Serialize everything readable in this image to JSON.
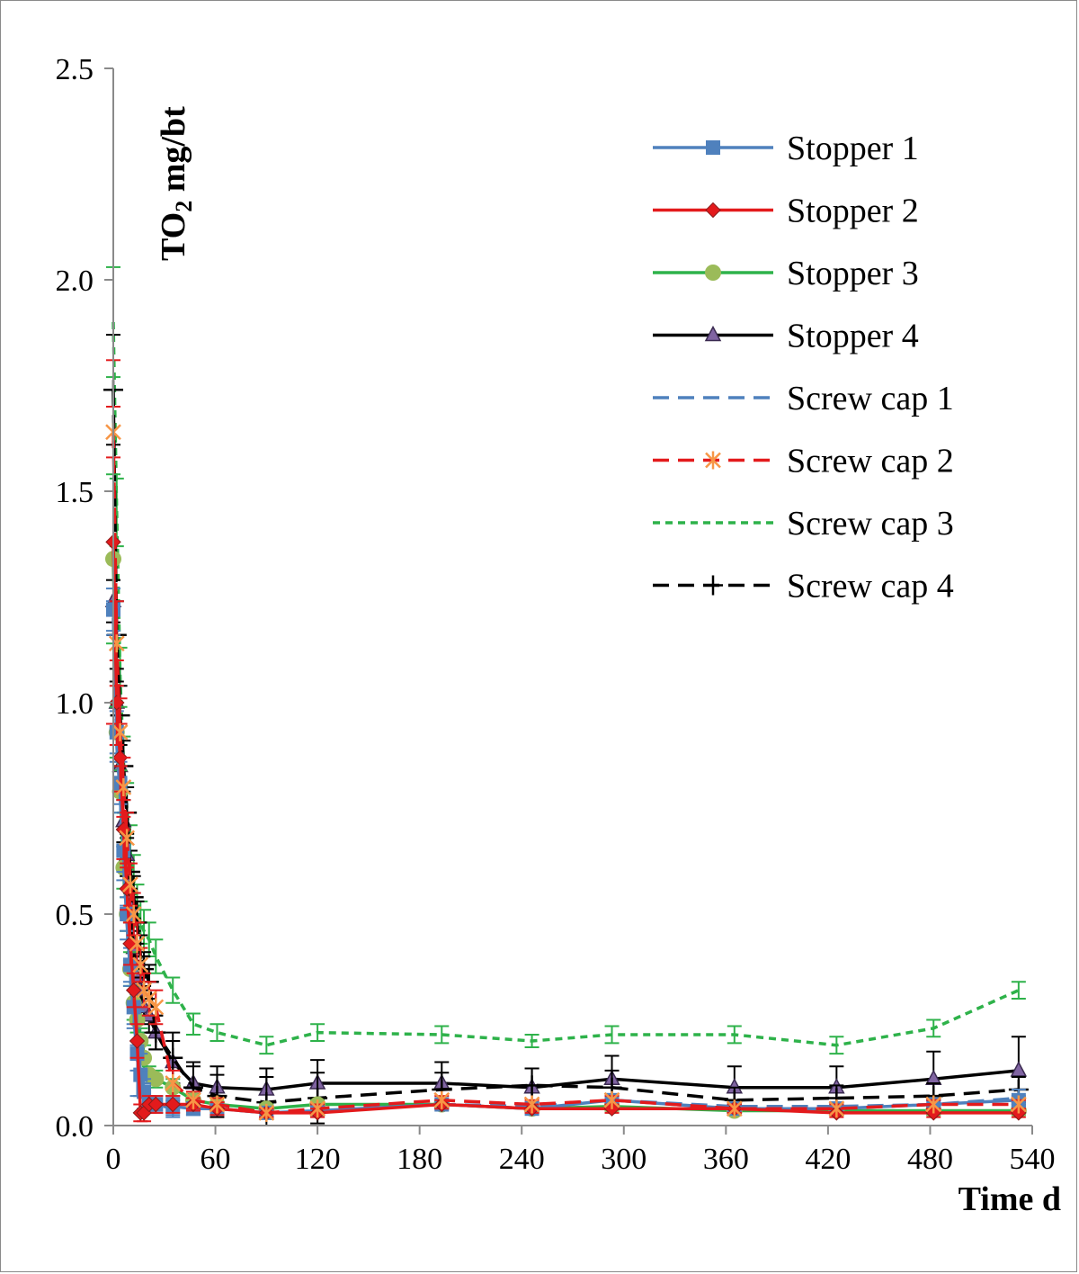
{
  "chart_data": {
    "type": "line",
    "title": "",
    "xlabel": "Time d",
    "ylabel_main": "TO",
    "ylabel_sub": "2",
    "ylabel_rest": " mg/bt",
    "xlim": [
      0,
      540
    ],
    "ylim": [
      0,
      2.5
    ],
    "xticks": [
      0,
      60,
      120,
      180,
      240,
      300,
      360,
      420,
      480,
      540
    ],
    "xtick_labels": [
      "0",
      "60",
      "120",
      "180",
      "240",
      "300",
      "360",
      "420",
      "480",
      "540"
    ],
    "yticks": [
      0,
      0.5,
      1.0,
      1.5,
      2.0,
      2.5
    ],
    "ytick_labels": [
      "0.0",
      "0.5",
      "1.0",
      "1.5",
      "2.0",
      "2.5"
    ],
    "grid": false,
    "legend_position": "top-right",
    "series": [
      {
        "name": "Stopper 1",
        "color": "#4f81bd",
        "dash": "solid",
        "marker": "square",
        "x": [
          0,
          2,
          4,
          6,
          8,
          10,
          12,
          14,
          16,
          18,
          21,
          25,
          35,
          47,
          61,
          90,
          120,
          193,
          246,
          293,
          365,
          425,
          482,
          532
        ],
        "y": [
          1.22,
          0.93,
          0.81,
          0.65,
          0.5,
          0.38,
          0.28,
          0.17,
          0.12,
          0.08,
          0.05,
          0.05,
          0.045,
          0.04,
          0.04,
          0.03,
          0.035,
          0.05,
          0.04,
          0.06,
          0.04,
          0.04,
          0.05,
          0.06
        ],
        "err": [
          0.05,
          0.05,
          0.05,
          0.05,
          0.04,
          0.04,
          0.04,
          0.1,
          0.05,
          0.03,
          0.02,
          0.02,
          0.02,
          0.015,
          0.015,
          0.01,
          0.01,
          0.01,
          0.01,
          0.01,
          0.01,
          0.01,
          0.01,
          0.01
        ]
      },
      {
        "name": "Stopper 2",
        "color": "#e31a1c",
        "dash": "solid",
        "marker": "diamond",
        "x": [
          0,
          2,
          4,
          6,
          8,
          10,
          12,
          14,
          16,
          18,
          21,
          25,
          35,
          47,
          61,
          90,
          120,
          193,
          246,
          293,
          365,
          425,
          482,
          532
        ],
        "y": [
          1.38,
          1.0,
          0.87,
          0.7,
          0.56,
          0.43,
          0.32,
          0.2,
          0.03,
          0.03,
          0.05,
          0.05,
          0.05,
          0.05,
          0.04,
          0.03,
          0.03,
          0.05,
          0.04,
          0.04,
          0.04,
          0.03,
          0.03,
          0.03
        ],
        "err": [
          0.43,
          0.1,
          0.08,
          0.07,
          0.05,
          0.05,
          0.04,
          0.04,
          0.02,
          0.02,
          0.02,
          0.02,
          0.02,
          0.015,
          0.015,
          0.01,
          0.01,
          0.01,
          0.01,
          0.01,
          0.01,
          0.01,
          0.01,
          0.01
        ]
      },
      {
        "name": "Stopper 3",
        "color": "#2eb24a",
        "marker_color": "#9bbb59",
        "dash": "solid",
        "marker": "circle",
        "x": [
          0,
          2,
          4,
          6,
          8,
          10,
          12,
          14,
          16,
          18,
          21,
          25,
          35,
          47,
          61,
          90,
          120,
          193,
          246,
          293,
          365,
          425,
          482,
          532
        ],
        "y": [
          1.34,
          0.93,
          0.79,
          0.61,
          0.5,
          0.37,
          0.29,
          0.25,
          0.2,
          0.16,
          0.12,
          0.11,
          0.09,
          0.06,
          0.05,
          0.04,
          0.05,
          0.05,
          0.04,
          0.045,
          0.035,
          0.035,
          0.035,
          0.035
        ],
        "err": [
          0.2,
          0.06,
          0.05,
          0.05,
          0.04,
          0.04,
          0.04,
          0.03,
          0.03,
          0.03,
          0.02,
          0.02,
          0.02,
          0.015,
          0.015,
          0.01,
          0.01,
          0.01,
          0.01,
          0.01,
          0.01,
          0.01,
          0.01,
          0.01
        ]
      },
      {
        "name": "Stopper 4",
        "color": "#000000",
        "marker_color": "#8064a2",
        "dash": "solid",
        "marker": "triangle",
        "x": [
          0,
          2,
          4,
          6,
          8,
          10,
          12,
          14,
          16,
          18,
          21,
          25,
          35,
          47,
          61,
          90,
          120,
          193,
          246,
          293,
          365,
          425,
          482,
          532
        ],
        "y": [
          1.24,
          1.0,
          0.85,
          0.72,
          0.64,
          0.52,
          0.42,
          0.35,
          0.32,
          0.28,
          0.26,
          0.22,
          0.15,
          0.1,
          0.09,
          0.085,
          0.1,
          0.1,
          0.09,
          0.11,
          0.09,
          0.09,
          0.11,
          0.13
        ],
        "err": [
          0.05,
          0.05,
          0.05,
          0.05,
          0.05,
          0.04,
          0.04,
          0.04,
          0.04,
          0.04,
          0.04,
          0.04,
          0.05,
          0.05,
          0.05,
          0.05,
          0.055,
          0.05,
          0.045,
          0.055,
          0.05,
          0.05,
          0.065,
          0.08
        ]
      },
      {
        "name": "Screw cap 1",
        "color": "#4f81bd",
        "dash": "dashed",
        "marker": "none",
        "x": [
          0,
          2,
          4,
          6,
          8,
          10,
          12,
          14,
          16,
          18,
          21,
          25,
          35,
          47,
          61,
          90,
          120,
          193,
          246,
          293,
          365,
          425,
          482,
          532
        ],
        "y": [
          1.2,
          0.9,
          0.78,
          0.62,
          0.48,
          0.36,
          0.26,
          0.16,
          0.1,
          0.07,
          0.05,
          0.05,
          0.04,
          0.04,
          0.04,
          0.03,
          0.035,
          0.05,
          0.045,
          0.06,
          0.045,
          0.045,
          0.05,
          0.065
        ],
        "err": [
          0.04,
          0.04,
          0.04,
          0.04,
          0.04,
          0.03,
          0.03,
          0.03,
          0.03,
          0.03,
          0.02,
          0.02,
          0.02,
          0.015,
          0.015,
          0.01,
          0.01,
          0.01,
          0.01,
          0.01,
          0.01,
          0.01,
          0.01,
          0.02
        ]
      },
      {
        "name": "Screw cap 2",
        "color": "#e31a1c",
        "marker_color": "#f79646",
        "dash": "dashed",
        "marker": "asterisk",
        "x": [
          0,
          2,
          4,
          6,
          8,
          10,
          12,
          14,
          16,
          18,
          21,
          25,
          35,
          47,
          61,
          90,
          120,
          193,
          246,
          293,
          365,
          425,
          482,
          532
        ],
        "y": [
          1.64,
          1.14,
          0.93,
          0.8,
          0.68,
          0.57,
          0.5,
          0.43,
          0.38,
          0.32,
          0.3,
          0.28,
          0.1,
          0.06,
          0.05,
          0.03,
          0.04,
          0.06,
          0.05,
          0.06,
          0.04,
          0.04,
          0.05,
          0.05
        ],
        "err": [
          0.06,
          0.1,
          0.08,
          0.07,
          0.06,
          0.05,
          0.05,
          0.05,
          0.04,
          0.04,
          0.04,
          0.04,
          0.03,
          0.02,
          0.015,
          0.01,
          0.01,
          0.01,
          0.01,
          0.01,
          0.01,
          0.01,
          0.01,
          0.01
        ]
      },
      {
        "name": "Screw cap 3",
        "color": "#2eb24a",
        "dash": "dotted",
        "marker": "none",
        "x": [
          0,
          2,
          4,
          6,
          8,
          10,
          12,
          14,
          16,
          18,
          21,
          25,
          35,
          47,
          61,
          90,
          120,
          193,
          246,
          293,
          365,
          425,
          482,
          532
        ],
        "y": [
          1.9,
          1.45,
          1.06,
          0.86,
          0.75,
          0.65,
          0.58,
          0.52,
          0.48,
          0.46,
          0.44,
          0.4,
          0.32,
          0.24,
          0.22,
          0.19,
          0.22,
          0.215,
          0.2,
          0.215,
          0.215,
          0.19,
          0.23,
          0.32
        ],
        "err": [
          0.13,
          0.08,
          0.07,
          0.06,
          0.06,
          0.06,
          0.06,
          0.05,
          0.05,
          0.05,
          0.04,
          0.04,
          0.03,
          0.025,
          0.02,
          0.02,
          0.02,
          0.02,
          0.015,
          0.02,
          0.02,
          0.02,
          0.02,
          0.02
        ]
      },
      {
        "name": "Screw cap 4",
        "color": "#000000",
        "dash": "dashed",
        "marker": "plus",
        "x": [
          0,
          2,
          4,
          6,
          8,
          10,
          12,
          14,
          16,
          18,
          21,
          25,
          35,
          47,
          61,
          90,
          120,
          193,
          246,
          293,
          365,
          425,
          482,
          532
        ],
        "y": [
          1.74,
          1.16,
          0.97,
          0.85,
          0.74,
          0.6,
          0.54,
          0.48,
          0.4,
          0.37,
          0.34,
          0.22,
          0.16,
          0.09,
          0.07,
          0.055,
          0.065,
          0.085,
          0.095,
          0.09,
          0.06,
          0.065,
          0.07,
          0.085
        ],
        "err": [
          0.13,
          0.08,
          0.07,
          0.06,
          0.06,
          0.05,
          0.05,
          0.05,
          0.05,
          0.04,
          0.04,
          0.04,
          0.06,
          0.05,
          0.05,
          0.06,
          0.06,
          0.04,
          0.04,
          0.04,
          0.03,
          0.03,
          0.03,
          0.03
        ]
      }
    ]
  }
}
